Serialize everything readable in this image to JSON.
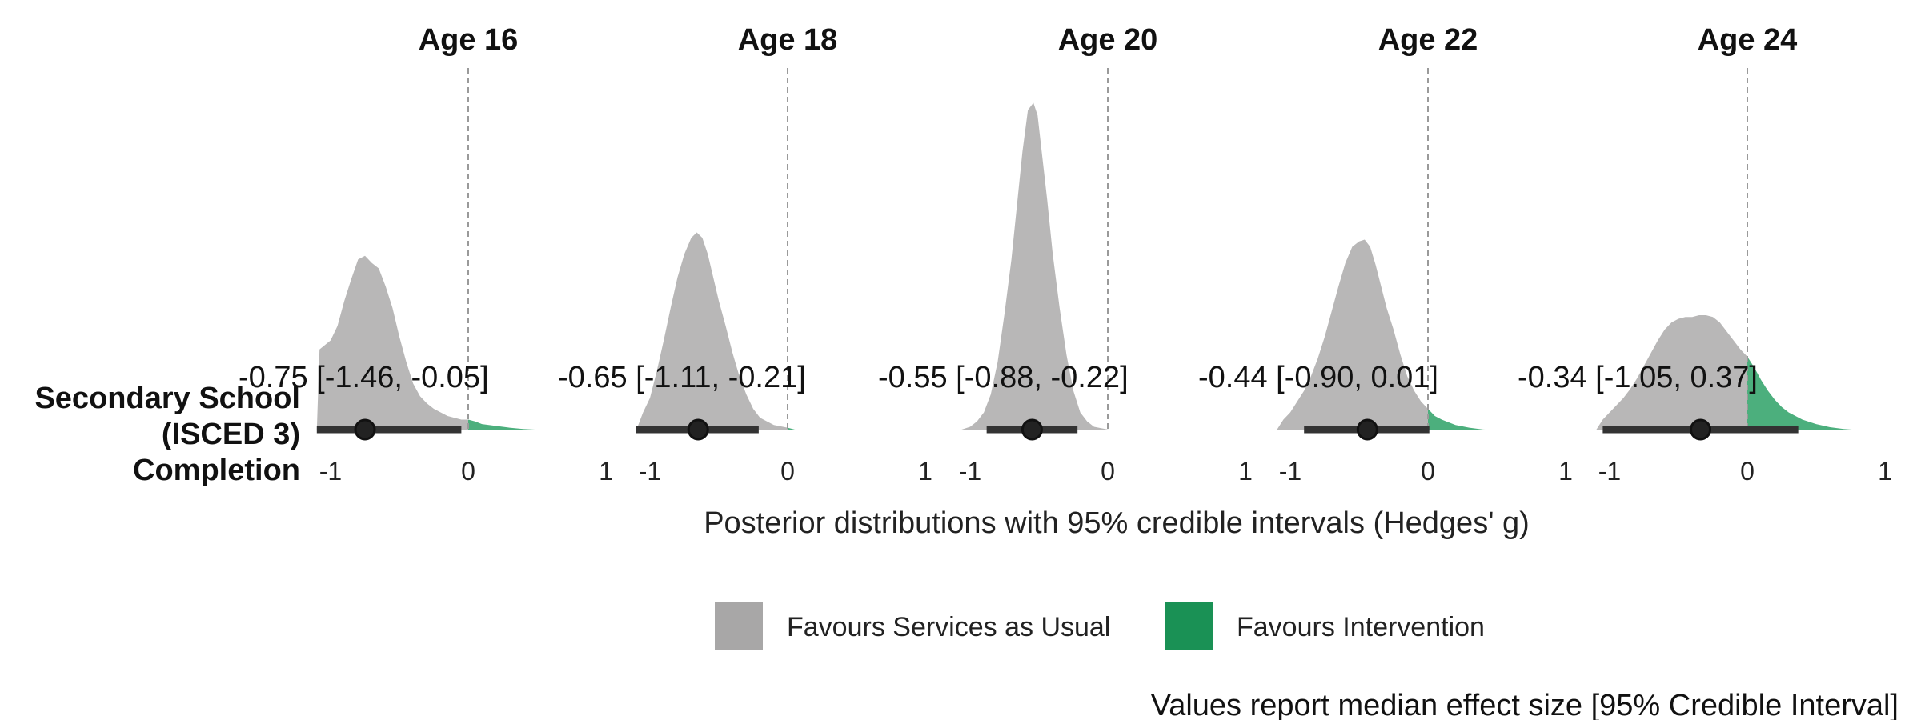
{
  "chart_data": {
    "type": "density",
    "row_label": [
      "Secondary School",
      "(ISCED 3)",
      "Completion"
    ],
    "xlabel": "Posterior distributions with 95% credible intervals (Hedges' g)",
    "caption": "Values report median effect size [95% Credible Interval]",
    "xlim": [
      -1.1,
      1
    ],
    "x_ticks": [
      "-1",
      "0",
      "1"
    ],
    "reference_line": 0,
    "legend": {
      "position": "bottom",
      "items": [
        {
          "label": "Favours Services as Usual",
          "color": "#a8a7a7"
        },
        {
          "label": "Favours Intervention",
          "color": "#1a9155"
        }
      ]
    },
    "colors": {
      "negative": "#b8b7b7",
      "positive": "#4caf7d",
      "interval": "#333333",
      "point": "#222222"
    },
    "facets": [
      {
        "title": "Age 16",
        "median": -0.75,
        "ci": [
          -1.46,
          -0.05
        ],
        "label": "-0.75 [-1.46, -0.05]",
        "density": [
          [
            -1.1,
            0.0
          ],
          [
            -1.08,
            0.45
          ],
          [
            -1.0,
            0.5
          ],
          [
            -0.95,
            0.58
          ],
          [
            -0.9,
            0.72
          ],
          [
            -0.85,
            0.84
          ],
          [
            -0.8,
            0.95
          ],
          [
            -0.75,
            0.97
          ],
          [
            -0.7,
            0.93
          ],
          [
            -0.65,
            0.9
          ],
          [
            -0.6,
            0.8
          ],
          [
            -0.55,
            0.68
          ],
          [
            -0.5,
            0.52
          ],
          [
            -0.45,
            0.38
          ],
          [
            -0.4,
            0.26
          ],
          [
            -0.35,
            0.19
          ],
          [
            -0.3,
            0.15
          ],
          [
            -0.25,
            0.12
          ],
          [
            -0.2,
            0.1
          ],
          [
            -0.15,
            0.08
          ],
          [
            -0.1,
            0.07
          ],
          [
            -0.05,
            0.06
          ],
          [
            0.0,
            0.06
          ],
          [
            0.05,
            0.05
          ],
          [
            0.1,
            0.035
          ],
          [
            0.2,
            0.025
          ],
          [
            0.3,
            0.015
          ],
          [
            0.4,
            0.008
          ],
          [
            0.5,
            0.004
          ],
          [
            0.6,
            0.002
          ],
          [
            0.68,
            0.0
          ]
        ]
      },
      {
        "title": "Age 18",
        "median": -0.65,
        "ci": [
          -1.11,
          -0.21
        ],
        "label": "-0.65 [-1.11, -0.21]",
        "density": [
          [
            -1.1,
            0.0
          ],
          [
            -1.05,
            0.1
          ],
          [
            -1.0,
            0.18
          ],
          [
            -0.95,
            0.33
          ],
          [
            -0.9,
            0.5
          ],
          [
            -0.85,
            0.68
          ],
          [
            -0.8,
            0.85
          ],
          [
            -0.75,
            0.98
          ],
          [
            -0.7,
            1.07
          ],
          [
            -0.66,
            1.1
          ],
          [
            -0.62,
            1.07
          ],
          [
            -0.58,
            0.98
          ],
          [
            -0.54,
            0.85
          ],
          [
            -0.5,
            0.72
          ],
          [
            -0.45,
            0.58
          ],
          [
            -0.4,
            0.43
          ],
          [
            -0.35,
            0.3
          ],
          [
            -0.3,
            0.2
          ],
          [
            -0.25,
            0.12
          ],
          [
            -0.2,
            0.07
          ],
          [
            -0.1,
            0.03
          ],
          [
            0.0,
            0.015
          ],
          [
            0.05,
            0.005
          ],
          [
            0.1,
            0.0
          ]
        ]
      },
      {
        "title": "Age 20",
        "median": -0.55,
        "ci": [
          -0.88,
          -0.22
        ],
        "label": "-0.55 [-0.88, -0.22]",
        "density": [
          [
            -1.08,
            0.0
          ],
          [
            -1.0,
            0.02
          ],
          [
            -0.95,
            0.05
          ],
          [
            -0.9,
            0.1
          ],
          [
            -0.85,
            0.2
          ],
          [
            -0.8,
            0.38
          ],
          [
            -0.75,
            0.65
          ],
          [
            -0.7,
            0.95
          ],
          [
            -0.66,
            1.25
          ],
          [
            -0.62,
            1.55
          ],
          [
            -0.58,
            1.78
          ],
          [
            -0.54,
            1.82
          ],
          [
            -0.51,
            1.75
          ],
          [
            -0.48,
            1.55
          ],
          [
            -0.44,
            1.28
          ],
          [
            -0.4,
            0.98
          ],
          [
            -0.35,
            0.68
          ],
          [
            -0.3,
            0.42
          ],
          [
            -0.25,
            0.22
          ],
          [
            -0.2,
            0.1
          ],
          [
            -0.15,
            0.05
          ],
          [
            -0.1,
            0.02
          ],
          [
            0.0,
            0.005
          ],
          [
            0.05,
            0.0
          ]
        ]
      },
      {
        "title": "Age 22",
        "median": -0.44,
        "ci": [
          -0.9,
          0.01
        ],
        "label": "-0.44 [-0.90, 0.01]",
        "density": [
          [
            -1.1,
            0.0
          ],
          [
            -1.05,
            0.06
          ],
          [
            -1.0,
            0.1
          ],
          [
            -0.95,
            0.16
          ],
          [
            -0.9,
            0.22
          ],
          [
            -0.85,
            0.3
          ],
          [
            -0.8,
            0.4
          ],
          [
            -0.75,
            0.52
          ],
          [
            -0.7,
            0.66
          ],
          [
            -0.65,
            0.8
          ],
          [
            -0.6,
            0.93
          ],
          [
            -0.55,
            1.02
          ],
          [
            -0.5,
            1.05
          ],
          [
            -0.46,
            1.06
          ],
          [
            -0.42,
            1.02
          ],
          [
            -0.38,
            0.92
          ],
          [
            -0.34,
            0.8
          ],
          [
            -0.3,
            0.68
          ],
          [
            -0.25,
            0.56
          ],
          [
            -0.2,
            0.42
          ],
          [
            -0.15,
            0.3
          ],
          [
            -0.1,
            0.22
          ],
          [
            -0.05,
            0.16
          ],
          [
            0.0,
            0.12
          ],
          [
            0.05,
            0.08
          ],
          [
            0.1,
            0.06
          ],
          [
            0.2,
            0.03
          ],
          [
            0.3,
            0.015
          ],
          [
            0.4,
            0.005
          ],
          [
            0.55,
            0.0
          ]
        ]
      },
      {
        "title": "Age 24",
        "median": -0.34,
        "ci": [
          -1.05,
          0.37
        ],
        "label": "-0.34 [-1.05, 0.37]",
        "density": [
          [
            -1.1,
            0.0
          ],
          [
            -1.05,
            0.06
          ],
          [
            -1.0,
            0.1
          ],
          [
            -0.95,
            0.14
          ],
          [
            -0.9,
            0.18
          ],
          [
            -0.85,
            0.23
          ],
          [
            -0.8,
            0.29
          ],
          [
            -0.75,
            0.36
          ],
          [
            -0.7,
            0.43
          ],
          [
            -0.65,
            0.5
          ],
          [
            -0.6,
            0.56
          ],
          [
            -0.55,
            0.6
          ],
          [
            -0.5,
            0.62
          ],
          [
            -0.45,
            0.63
          ],
          [
            -0.4,
            0.63
          ],
          [
            -0.35,
            0.64
          ],
          [
            -0.3,
            0.64
          ],
          [
            -0.25,
            0.63
          ],
          [
            -0.2,
            0.6
          ],
          [
            -0.15,
            0.55
          ],
          [
            -0.1,
            0.5
          ],
          [
            -0.05,
            0.45
          ],
          [
            0.0,
            0.41
          ],
          [
            0.05,
            0.35
          ],
          [
            0.1,
            0.28
          ],
          [
            0.15,
            0.22
          ],
          [
            0.2,
            0.17
          ],
          [
            0.25,
            0.13
          ],
          [
            0.3,
            0.1
          ],
          [
            0.4,
            0.06
          ],
          [
            0.5,
            0.035
          ],
          [
            0.6,
            0.018
          ],
          [
            0.7,
            0.008
          ],
          [
            0.8,
            0.002
          ],
          [
            1.0,
            0.0
          ]
        ]
      }
    ]
  }
}
